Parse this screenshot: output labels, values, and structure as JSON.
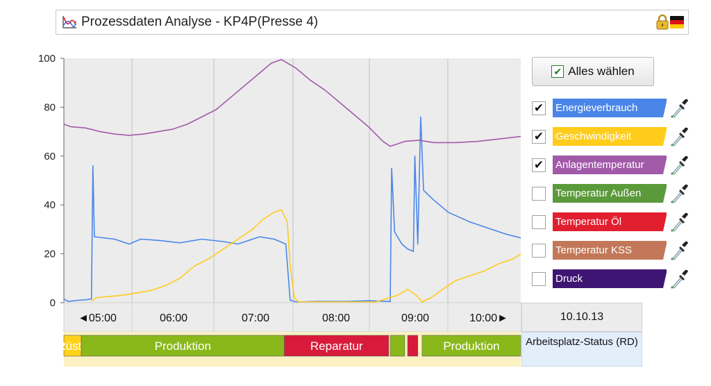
{
  "window": {
    "title": "Prozessdaten Analyse - KP4P(Presse 4)"
  },
  "select_all": {
    "label": "Alles wählen",
    "checked": true
  },
  "legend": [
    {
      "label": "Energieverbrauch",
      "color": "#4a86e8",
      "checked": true
    },
    {
      "label": "Geschwindigkeit",
      "color": "#ffcc1a",
      "checked": true
    },
    {
      "label": "Anlagentemperatur",
      "color": "#a15aa8",
      "checked": true
    },
    {
      "label": "Temperatur Außen",
      "color": "#5b9a3a",
      "checked": false
    },
    {
      "label": "Temperatur Öl",
      "color": "#e21f2f",
      "checked": false
    },
    {
      "label": "Temperatur KSS",
      "color": "#c27858",
      "checked": false
    },
    {
      "label": "Druck",
      "color": "#3f1573",
      "checked": false
    }
  ],
  "timeline": {
    "date": "10.10.13",
    "ticks": [
      "◄05:00",
      "06:00",
      "07:00",
      "08:00",
      "09:00",
      "10:00►"
    ],
    "status_label": "Arbeitsplatz-Status (RD)",
    "status_segments": [
      {
        "label": "Rüste",
        "color": "#ffd21a",
        "start": "04:55",
        "end": "05:07"
      },
      {
        "label": "Produktion",
        "color": "#8ab81a",
        "start": "05:07",
        "end": "07:27"
      },
      {
        "label": "Reparatur",
        "color": "#d81b3b",
        "start": "07:27",
        "end": "08:39"
      },
      {
        "label": "",
        "color": "#8ab81a",
        "start": "08:40",
        "end": "08:50"
      },
      {
        "label": "",
        "color": "#d81b3b",
        "start": "08:52",
        "end": "08:59"
      },
      {
        "label": "Produktion",
        "color": "#8ab81a",
        "start": "09:02",
        "end": "10:10"
      }
    ]
  },
  "chart_data": {
    "type": "line",
    "x_unit": "time (hh:mm)",
    "xlim": [
      "04:55",
      "10:10"
    ],
    "ylim": [
      0,
      100
    ],
    "y_ticks": [
      0,
      20,
      40,
      60,
      80,
      100
    ],
    "grid": true,
    "series": [
      {
        "name": "Energieverbrauch",
        "color": "#4a86e8",
        "points": [
          [
            "04:55",
            1.5
          ],
          [
            "04:58",
            0.5
          ],
          [
            "05:05",
            1
          ],
          [
            "05:10",
            1.2
          ],
          [
            "05:14",
            1.5
          ],
          [
            "05:15",
            56
          ],
          [
            "05:16",
            27
          ],
          [
            "05:30",
            26
          ],
          [
            "05:40",
            24
          ],
          [
            "05:48",
            26
          ],
          [
            "06:00",
            25.5
          ],
          [
            "06:15",
            24.5
          ],
          [
            "06:30",
            26
          ],
          [
            "06:45",
            25
          ],
          [
            "06:55",
            24
          ],
          [
            "07:10",
            27
          ],
          [
            "07:20",
            26
          ],
          [
            "07:28",
            24
          ],
          [
            "07:31",
            1
          ],
          [
            "07:35",
            0.3
          ],
          [
            "07:50",
            0.5
          ],
          [
            "08:10",
            0.5
          ],
          [
            "08:25",
            0.8
          ],
          [
            "08:40",
            0.5
          ],
          [
            "08:41",
            55
          ],
          [
            "08:43",
            29
          ],
          [
            "08:48",
            24
          ],
          [
            "08:52",
            22
          ],
          [
            "08:56",
            21
          ],
          [
            "08:57",
            60
          ],
          [
            "08:59",
            24
          ],
          [
            "09:01",
            76
          ],
          [
            "09:03",
            46
          ],
          [
            "09:10",
            42
          ],
          [
            "09:20",
            37
          ],
          [
            "09:35",
            33
          ],
          [
            "09:50",
            30
          ],
          [
            "10:00",
            28
          ],
          [
            "10:10",
            26.5
          ]
        ]
      },
      {
        "name": "Geschwindigkeit",
        "color": "#ffcc1a",
        "points": [
          [
            "05:14",
            0.5
          ],
          [
            "05:17",
            2
          ],
          [
            "05:25",
            2.5
          ],
          [
            "05:35",
            3
          ],
          [
            "05:45",
            4
          ],
          [
            "05:55",
            5
          ],
          [
            "06:05",
            7
          ],
          [
            "06:15",
            10
          ],
          [
            "06:25",
            15
          ],
          [
            "06:35",
            18
          ],
          [
            "06:45",
            22
          ],
          [
            "06:55",
            26
          ],
          [
            "07:05",
            30
          ],
          [
            "07:12",
            34
          ],
          [
            "07:20",
            37
          ],
          [
            "07:25",
            38
          ],
          [
            "07:29",
            33
          ],
          [
            "07:31",
            15
          ],
          [
            "07:34",
            2
          ],
          [
            "07:37",
            0.3
          ],
          [
            "08:00",
            0.3
          ],
          [
            "08:30",
            0.3
          ],
          [
            "08:45",
            3
          ],
          [
            "08:52",
            5.5
          ],
          [
            "08:58",
            3
          ],
          [
            "09:02",
            0.3
          ],
          [
            "09:08",
            2
          ],
          [
            "09:15",
            5
          ],
          [
            "09:25",
            9
          ],
          [
            "09:35",
            11
          ],
          [
            "09:45",
            13
          ],
          [
            "09:55",
            16
          ],
          [
            "10:05",
            18
          ],
          [
            "10:10",
            20
          ]
        ]
      },
      {
        "name": "Anlagentemperatur",
        "color": "#a15aa8",
        "points": [
          [
            "04:55",
            73
          ],
          [
            "05:00",
            72
          ],
          [
            "05:10",
            71.5
          ],
          [
            "05:20",
            70
          ],
          [
            "05:30",
            69
          ],
          [
            "05:40",
            68.5
          ],
          [
            "05:50",
            69
          ],
          [
            "06:00",
            70
          ],
          [
            "06:10",
            71
          ],
          [
            "06:20",
            73
          ],
          [
            "06:30",
            76
          ],
          [
            "06:40",
            79
          ],
          [
            "06:50",
            84
          ],
          [
            "07:00",
            89
          ],
          [
            "07:10",
            94
          ],
          [
            "07:18",
            98
          ],
          [
            "07:25",
            99.5
          ],
          [
            "07:35",
            96
          ],
          [
            "07:45",
            91
          ],
          [
            "07:55",
            87
          ],
          [
            "08:05",
            82
          ],
          [
            "08:15",
            77
          ],
          [
            "08:25",
            72
          ],
          [
            "08:35",
            66
          ],
          [
            "08:40",
            64
          ],
          [
            "08:50",
            66
          ],
          [
            "09:00",
            66.5
          ],
          [
            "09:10",
            65.5
          ],
          [
            "09:25",
            65.5
          ],
          [
            "09:40",
            66
          ],
          [
            "09:55",
            67
          ],
          [
            "10:10",
            68
          ]
        ]
      }
    ]
  }
}
